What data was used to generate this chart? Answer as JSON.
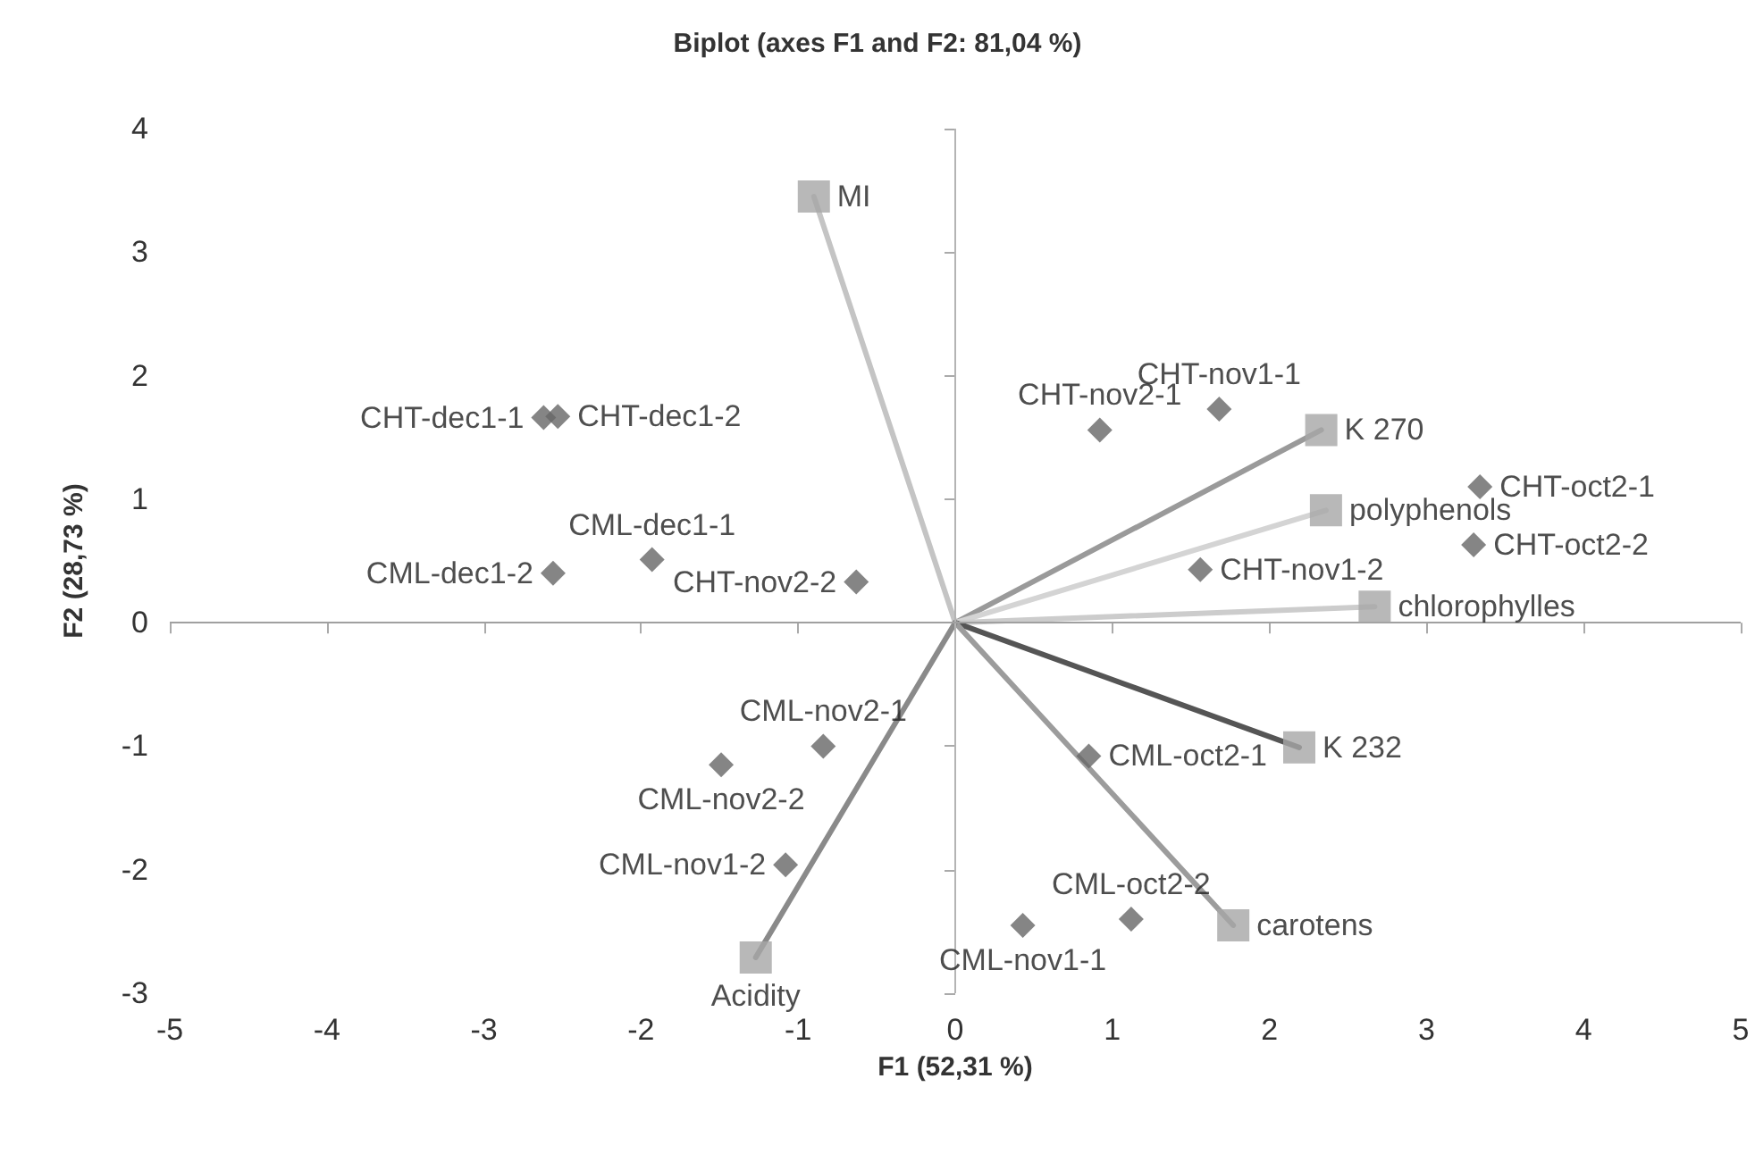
{
  "chart_data": {
    "type": "scatter",
    "title": "Biplot (axes F1 and F2: 81,04 %)",
    "xlabel": "F1 (52,31 %)",
    "ylabel": "F2 (28,73 %)",
    "xlim": [
      -5,
      5
    ],
    "xticks": [
      -5,
      -4,
      -3,
      -2,
      -1,
      0,
      1,
      2,
      3,
      4,
      5
    ],
    "ylim": [
      -3,
      4
    ],
    "yticks": [
      -3,
      -2,
      -1,
      0,
      1,
      2,
      3,
      4
    ],
    "ref_lines": [
      {
        "axis": "x",
        "value": 0,
        "color": "#b4b4b4"
      },
      {
        "axis": "y",
        "value": 0,
        "color": "#a0a0a0"
      }
    ],
    "series": [
      {
        "type": "line",
        "marker": "none",
        "color": "#c4c4c4",
        "x": [
          0,
          -0.9
        ],
        "values": [
          0,
          3.45
        ]
      },
      {
        "type": "line",
        "marker": "none",
        "color": "#9a9a9a",
        "x": [
          0,
          2.33
        ],
        "values": [
          0,
          1.56
        ]
      },
      {
        "type": "line",
        "marker": "none",
        "color": "#d4d4d4",
        "x": [
          0,
          2.36
        ],
        "values": [
          0,
          0.91
        ]
      },
      {
        "type": "line",
        "marker": "none",
        "color": "#cccccc",
        "x": [
          0,
          2.67
        ],
        "values": [
          0,
          0.13
        ]
      },
      {
        "type": "line",
        "marker": "none",
        "color": "#555555",
        "x": [
          0,
          2.19
        ],
        "values": [
          0,
          -1.01
        ]
      },
      {
        "type": "line",
        "marker": "none",
        "color": "#9c9c9c",
        "x": [
          0,
          1.77
        ],
        "values": [
          0,
          -2.45
        ]
      },
      {
        "type": "line",
        "marker": "none",
        "color": "#8a8a8a",
        "x": [
          0,
          -1.27
        ],
        "values": [
          0,
          -2.71
        ]
      },
      {
        "marker": "diamond",
        "color": "#666666",
        "x": [
          -2.62,
          -2.53,
          -2.56,
          -1.93,
          -0.63,
          0.92,
          1.68,
          3.34,
          3.3,
          1.56,
          -0.84,
          -1.49,
          -1.08,
          0.85,
          0.43,
          1.12
        ],
        "values": [
          1.66,
          1.67,
          0.4,
          0.51,
          0.33,
          1.56,
          1.73,
          1.1,
          0.63,
          0.43,
          -1.0,
          -1.15,
          -1.96,
          -1.08,
          -2.45,
          -2.4
        ],
        "value_labels": [
          "CHT-dec1-1",
          "CHT-dec1-2",
          "CML-dec1-2",
          "CML-dec1-1",
          "CHT-nov2-2",
          "CHT-nov2-1",
          "CHT-nov1-1",
          "CHT-oct2-1",
          "CHT-oct2-2",
          "CHT-nov1-2",
          "CML-nov2-1",
          "CML-nov2-2",
          "CML-nov1-2",
          "CML-oct2-1",
          "CML-nov1-1",
          "CML-oct2-2"
        ]
      },
      {
        "marker": "square",
        "color": "#a6a6a6",
        "x": [
          -0.9,
          2.33,
          2.36,
          2.67,
          2.19,
          1.77,
          -1.27
        ],
        "values": [
          3.45,
          1.56,
          0.91,
          0.13,
          -1.01,
          -2.45,
          -2.71
        ],
        "value_labels": [
          "MI",
          "K 270",
          "polyphenols",
          "chlorophylles",
          "K 232",
          "carotens",
          "Acidity"
        ]
      }
    ]
  }
}
